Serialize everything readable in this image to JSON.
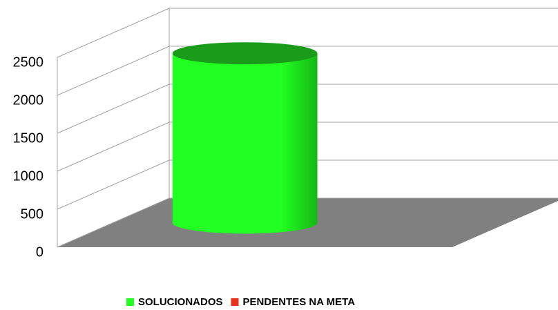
{
  "chart_data": {
    "type": "cylinder",
    "categories": [
      null
    ],
    "series": [
      {
        "name": "SOLUCIONADOS",
        "color": "#22ff22",
        "values": [
          2230
        ]
      },
      {
        "name": "PENDENTES NA META",
        "color": "#e8321e",
        "values": [
          0
        ]
      }
    ],
    "ylim": [
      0,
      2500
    ],
    "yticks": [
      0,
      500,
      1000,
      1500,
      2000,
      2500
    ],
    "grid": true,
    "legend": "bottom"
  }
}
